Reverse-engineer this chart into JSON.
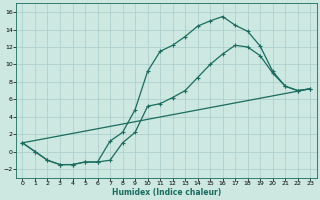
{
  "bg_color": "#cce8e0",
  "grid_color": "#aacccc",
  "line_color": "#1a6b60",
  "line_width": 0.9,
  "marker": "+",
  "marker_size": 3,
  "marker_lw": 0.8,
  "xlabel": "Humidex (Indice chaleur)",
  "xlim": [
    -0.5,
    23.5
  ],
  "ylim": [
    -3,
    17
  ],
  "xticks": [
    0,
    1,
    2,
    3,
    4,
    5,
    6,
    7,
    8,
    9,
    10,
    11,
    12,
    13,
    14,
    15,
    16,
    17,
    18,
    19,
    20,
    21,
    22,
    23
  ],
  "yticks": [
    -2,
    0,
    2,
    4,
    6,
    8,
    10,
    12,
    14,
    16
  ],
  "curve1_x": [
    0,
    1,
    2,
    3,
    4,
    5,
    6,
    7,
    8,
    9,
    10,
    11,
    12,
    13,
    14,
    15,
    16,
    17,
    18,
    19,
    20,
    21,
    22,
    23
  ],
  "curve1_y": [
    1,
    0,
    -1,
    -1.5,
    -1.5,
    -1.2,
    -1.2,
    1.2,
    2.2,
    4.8,
    9.2,
    11.5,
    12.2,
    13.2,
    14.4,
    15.0,
    15.5,
    14.5,
    13.8,
    12.1,
    9.2,
    7.5,
    7.0,
    7.2
  ],
  "curve2_x": [
    0,
    1,
    2,
    3,
    4,
    5,
    6,
    7,
    8,
    9,
    10,
    11,
    12,
    13,
    14,
    15,
    16,
    17,
    18,
    19,
    20,
    21,
    22,
    23
  ],
  "curve2_y": [
    1,
    0,
    -1,
    -1.5,
    -1.5,
    -1.2,
    -1.2,
    -1.0,
    1.0,
    2.2,
    5.2,
    5.5,
    6.2,
    7.0,
    8.5,
    10.0,
    11.2,
    12.2,
    12.0,
    11.0,
    9.0,
    7.5,
    7.0,
    7.2
  ],
  "curve3_x": [
    0,
    23
  ],
  "curve3_y": [
    1,
    7.2
  ],
  "tick_fontsize": 4.5,
  "xlabel_fontsize": 5.5,
  "xlabel_fontweight": "bold"
}
